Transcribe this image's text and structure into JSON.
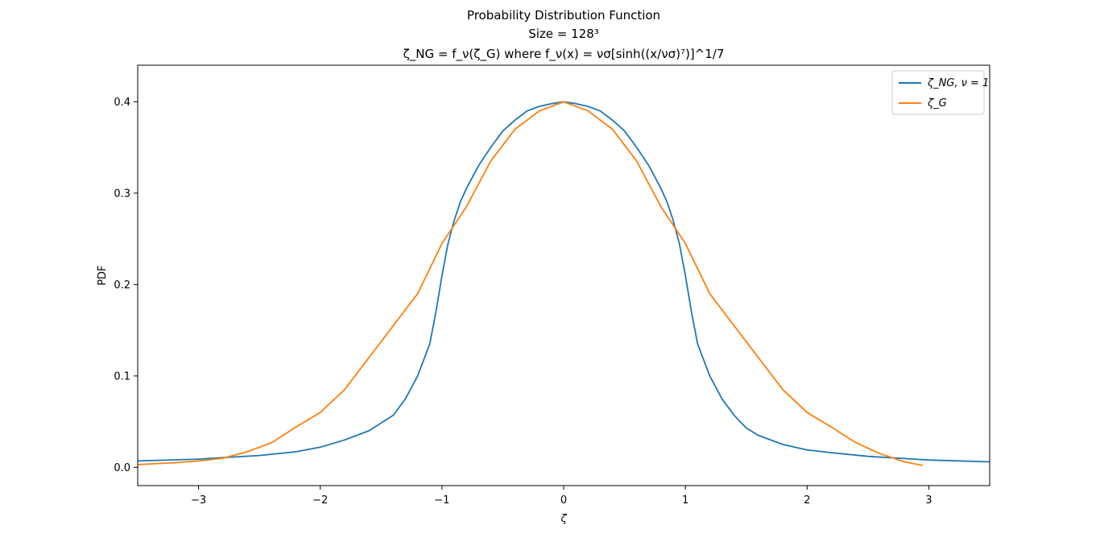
{
  "chart_data": {
    "type": "line",
    "title": [
      "Probability Distribution Function",
      "Size = 128³",
      "ζ_NG = f_ν(ζ_G) where f_ν(x) = νσ[sinh((x/νσ)⁷)]^1/7"
    ],
    "xlabel": "ζ",
    "ylabel": "PDF",
    "xlim": [
      -3.5,
      3.5
    ],
    "ylim": [
      -0.02,
      0.44
    ],
    "x_ticks": [
      -3,
      -2,
      -1,
      0,
      1,
      2,
      3
    ],
    "x_tick_labels": [
      "−3",
      "−2",
      "−1",
      "0",
      "1",
      "2",
      "3"
    ],
    "y_ticks": [
      0.0,
      0.1,
      0.2,
      0.3,
      0.4
    ],
    "y_tick_labels": [
      "0.0",
      "0.1",
      "0.2",
      "0.3",
      "0.4"
    ],
    "grid": false,
    "legend_position": "top-right",
    "series": [
      {
        "name": "ζ_NG, ν = 1",
        "color": "#1f77b4",
        "x": [
          -3.5,
          -3.0,
          -2.5,
          -2.2,
          -2.0,
          -1.8,
          -1.6,
          -1.4,
          -1.3,
          -1.2,
          -1.1,
          -1.05,
          -1.0,
          -0.95,
          -0.9,
          -0.85,
          -0.8,
          -0.7,
          -0.6,
          -0.5,
          -0.4,
          -0.3,
          -0.2,
          -0.1,
          0.0,
          0.1,
          0.2,
          0.3,
          0.4,
          0.5,
          0.6,
          0.7,
          0.8,
          0.85,
          0.9,
          0.95,
          1.0,
          1.05,
          1.1,
          1.2,
          1.3,
          1.4,
          1.5,
          1.6,
          1.8,
          2.0,
          2.2,
          2.5,
          3.0,
          3.5
        ],
        "y": [
          0.007,
          0.009,
          0.013,
          0.017,
          0.022,
          0.03,
          0.04,
          0.057,
          0.075,
          0.1,
          0.135,
          0.17,
          0.21,
          0.245,
          0.27,
          0.29,
          0.305,
          0.33,
          0.35,
          0.368,
          0.38,
          0.39,
          0.395,
          0.398,
          0.4,
          0.398,
          0.395,
          0.39,
          0.38,
          0.368,
          0.35,
          0.33,
          0.305,
          0.29,
          0.27,
          0.245,
          0.21,
          0.17,
          0.135,
          0.1,
          0.075,
          0.057,
          0.043,
          0.035,
          0.025,
          0.019,
          0.016,
          0.012,
          0.008,
          0.006
        ]
      },
      {
        "name": "ζ_G",
        "color": "#ff7f0e",
        "x": [
          -3.5,
          -3.2,
          -3.0,
          -2.8,
          -2.6,
          -2.4,
          -2.2,
          -2.0,
          -1.8,
          -1.6,
          -1.4,
          -1.2,
          -1.0,
          -0.8,
          -0.6,
          -0.4,
          -0.2,
          0.0,
          0.2,
          0.4,
          0.6,
          0.8,
          1.0,
          1.2,
          1.4,
          1.6,
          1.8,
          2.0,
          2.2,
          2.4,
          2.6,
          2.8,
          2.95
        ],
        "y": [
          0.003,
          0.005,
          0.007,
          0.01,
          0.017,
          0.027,
          0.044,
          0.06,
          0.085,
          0.12,
          0.155,
          0.19,
          0.245,
          0.285,
          0.335,
          0.37,
          0.39,
          0.4,
          0.39,
          0.37,
          0.335,
          0.285,
          0.245,
          0.19,
          0.155,
          0.12,
          0.085,
          0.06,
          0.044,
          0.027,
          0.015,
          0.006,
          0.002
        ]
      }
    ]
  }
}
